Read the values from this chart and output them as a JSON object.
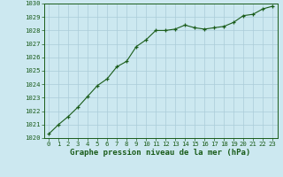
{
  "x": [
    0,
    1,
    2,
    3,
    4,
    5,
    6,
    7,
    8,
    9,
    10,
    11,
    12,
    13,
    14,
    15,
    16,
    17,
    18,
    19,
    20,
    21,
    22,
    23
  ],
  "y": [
    1020.3,
    1021.0,
    1021.6,
    1022.3,
    1023.1,
    1023.9,
    1024.4,
    1025.3,
    1025.7,
    1026.8,
    1027.3,
    1028.0,
    1028.0,
    1028.1,
    1028.4,
    1028.2,
    1028.1,
    1028.2,
    1028.3,
    1028.6,
    1029.1,
    1029.2,
    1029.6,
    1029.8
  ],
  "ylim": [
    1020,
    1030
  ],
  "xlim_min": -0.5,
  "xlim_max": 23.5,
  "yticks": [
    1020,
    1021,
    1022,
    1023,
    1024,
    1025,
    1026,
    1027,
    1028,
    1029,
    1030
  ],
  "xticks": [
    0,
    1,
    2,
    3,
    4,
    5,
    6,
    7,
    8,
    9,
    10,
    11,
    12,
    13,
    14,
    15,
    16,
    17,
    18,
    19,
    20,
    21,
    22,
    23
  ],
  "xlabel": "Graphe pression niveau de la mer (hPa)",
  "line_color": "#1a5c1a",
  "marker": "+",
  "bg_color": "#cce8f0",
  "grid_color": "#aaccd8",
  "label_color": "#1a5c1a",
  "tick_fontsize": 5.2,
  "xlabel_fontsize": 6.5,
  "linewidth": 0.8,
  "markersize": 3.5,
  "markeredgewidth": 0.9
}
